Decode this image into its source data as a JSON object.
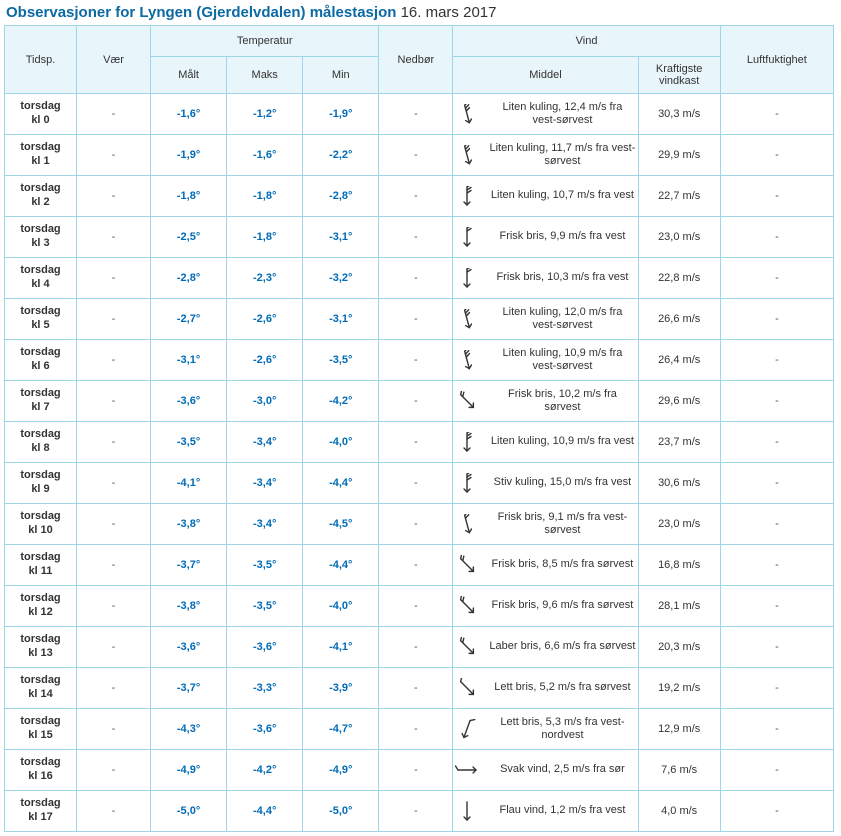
{
  "title_prefix": "Observasjoner for Lyngen (Gjerdelvdalen) målestasjon",
  "title_date": "16. mars 2017",
  "headers": {
    "time": "Tidsp.",
    "weather": "Vær",
    "temperature": "Temperatur",
    "temp_measured": "Målt",
    "temp_max": "Maks",
    "temp_min": "Min",
    "precip": "Nedbør",
    "wind": "Vind",
    "wind_mean": "Middel",
    "wind_gust": "Kraftigste vindkast",
    "humidity": "Luftfuktighet"
  },
  "icon_color": "#333333",
  "rows": [
    {
      "day": "torsdag",
      "hour": "kl 0",
      "measured": "-1,6°",
      "max": "-1,2°",
      "min": "-1,9°",
      "wind_desc": "Liten kuling, 12,4 m/s fra vest-sørvest",
      "gust": "30,3 m/s",
      "wind_dir": 255,
      "barbs": 3
    },
    {
      "day": "torsdag",
      "hour": "kl 1",
      "measured": "-1,9°",
      "max": "-1,6°",
      "min": "-2,2°",
      "wind_desc": "Liten kuling, 11,7 m/s fra vest-sørvest",
      "gust": "29,9 m/s",
      "wind_dir": 255,
      "barbs": 3
    },
    {
      "day": "torsdag",
      "hour": "kl 2",
      "measured": "-1,8°",
      "max": "-1,8°",
      "min": "-2,8°",
      "wind_desc": "Liten kuling, 10,7 m/s fra vest",
      "gust": "22,7 m/s",
      "wind_dir": 270,
      "barbs": 3
    },
    {
      "day": "torsdag",
      "hour": "kl 3",
      "measured": "-2,5°",
      "max": "-1,8°",
      "min": "-3,1°",
      "wind_desc": "Frisk bris, 9,9 m/s fra vest",
      "gust": "23,0 m/s",
      "wind_dir": 270,
      "barbs": 2
    },
    {
      "day": "torsdag",
      "hour": "kl 4",
      "measured": "-2,8°",
      "max": "-2,3°",
      "min": "-3,2°",
      "wind_desc": "Frisk bris, 10,3 m/s fra vest",
      "gust": "22,8 m/s",
      "wind_dir": 270,
      "barbs": 2
    },
    {
      "day": "torsdag",
      "hour": "kl 5",
      "measured": "-2,7°",
      "max": "-2,6°",
      "min": "-3,1°",
      "wind_desc": "Liten kuling, 12,0 m/s fra vest-sørvest",
      "gust": "26,6 m/s",
      "wind_dir": 255,
      "barbs": 3
    },
    {
      "day": "torsdag",
      "hour": "kl 6",
      "measured": "-3,1°",
      "max": "-2,6°",
      "min": "-3,5°",
      "wind_desc": "Liten kuling, 10,9 m/s fra vest-sørvest",
      "gust": "26,4 m/s",
      "wind_dir": 255,
      "barbs": 3
    },
    {
      "day": "torsdag",
      "hour": "kl 7",
      "measured": "-3,6°",
      "max": "-3,0°",
      "min": "-4,2°",
      "wind_desc": "Frisk bris, 10,2 m/s fra sørvest",
      "gust": "29,6 m/s",
      "wind_dir": 225,
      "barbs": 2
    },
    {
      "day": "torsdag",
      "hour": "kl 8",
      "measured": "-3,5°",
      "max": "-3,4°",
      "min": "-4,0°",
      "wind_desc": "Liten kuling, 10,9 m/s fra vest",
      "gust": "23,7 m/s",
      "wind_dir": 270,
      "barbs": 3
    },
    {
      "day": "torsdag",
      "hour": "kl 9",
      "measured": "-4,1°",
      "max": "-3,4°",
      "min": "-4,4°",
      "wind_desc": "Stiv kuling, 15,0 m/s fra vest",
      "gust": "30,6 m/s",
      "wind_dir": 270,
      "barbs": 3
    },
    {
      "day": "torsdag",
      "hour": "kl 10",
      "measured": "-3,8°",
      "max": "-3,4°",
      "min": "-4,5°",
      "wind_desc": "Frisk bris, 9,1 m/s fra vest-sørvest",
      "gust": "23,0 m/s",
      "wind_dir": 255,
      "barbs": 2
    },
    {
      "day": "torsdag",
      "hour": "kl 11",
      "measured": "-3,7°",
      "max": "-3,5°",
      "min": "-4,4°",
      "wind_desc": "Frisk bris, 8,5 m/s fra sørvest",
      "gust": "16,8 m/s",
      "wind_dir": 225,
      "barbs": 2
    },
    {
      "day": "torsdag",
      "hour": "kl 12",
      "measured": "-3,8°",
      "max": "-3,5°",
      "min": "-4,0°",
      "wind_desc": "Frisk bris, 9,6 m/s fra sørvest",
      "gust": "28,1 m/s",
      "wind_dir": 225,
      "barbs": 2
    },
    {
      "day": "torsdag",
      "hour": "kl 13",
      "measured": "-3,6°",
      "max": "-3,6°",
      "min": "-4,1°",
      "wind_desc": "Laber bris, 6,6 m/s fra sørvest",
      "gust": "20,3 m/s",
      "wind_dir": 225,
      "barbs": 2
    },
    {
      "day": "torsdag",
      "hour": "kl 14",
      "measured": "-3,7°",
      "max": "-3,3°",
      "min": "-3,9°",
      "wind_desc": "Lett bris, 5,2 m/s fra sørvest",
      "gust": "19,2 m/s",
      "wind_dir": 225,
      "barbs": 1
    },
    {
      "day": "torsdag",
      "hour": "kl 15",
      "measured": "-4,3°",
      "max": "-3,6°",
      "min": "-4,7°",
      "wind_desc": "Lett bris, 5,3 m/s fra vest-nordvest",
      "gust": "12,9 m/s",
      "wind_dir": 290,
      "barbs": 1
    },
    {
      "day": "torsdag",
      "hour": "kl 16",
      "measured": "-4,9°",
      "max": "-4,2°",
      "min": "-4,9°",
      "wind_desc": "Svak vind, 2,5 m/s fra sør",
      "gust": "7,6 m/s",
      "wind_dir": 180,
      "barbs": 1
    },
    {
      "day": "torsdag",
      "hour": "kl 17",
      "measured": "-5,0°",
      "max": "-4,4°",
      "min": "-5,0°",
      "wind_desc": "Flau vind, 1,2 m/s fra vest",
      "gust": "4,0 m/s",
      "wind_dir": 270,
      "barbs": 0
    }
  ]
}
